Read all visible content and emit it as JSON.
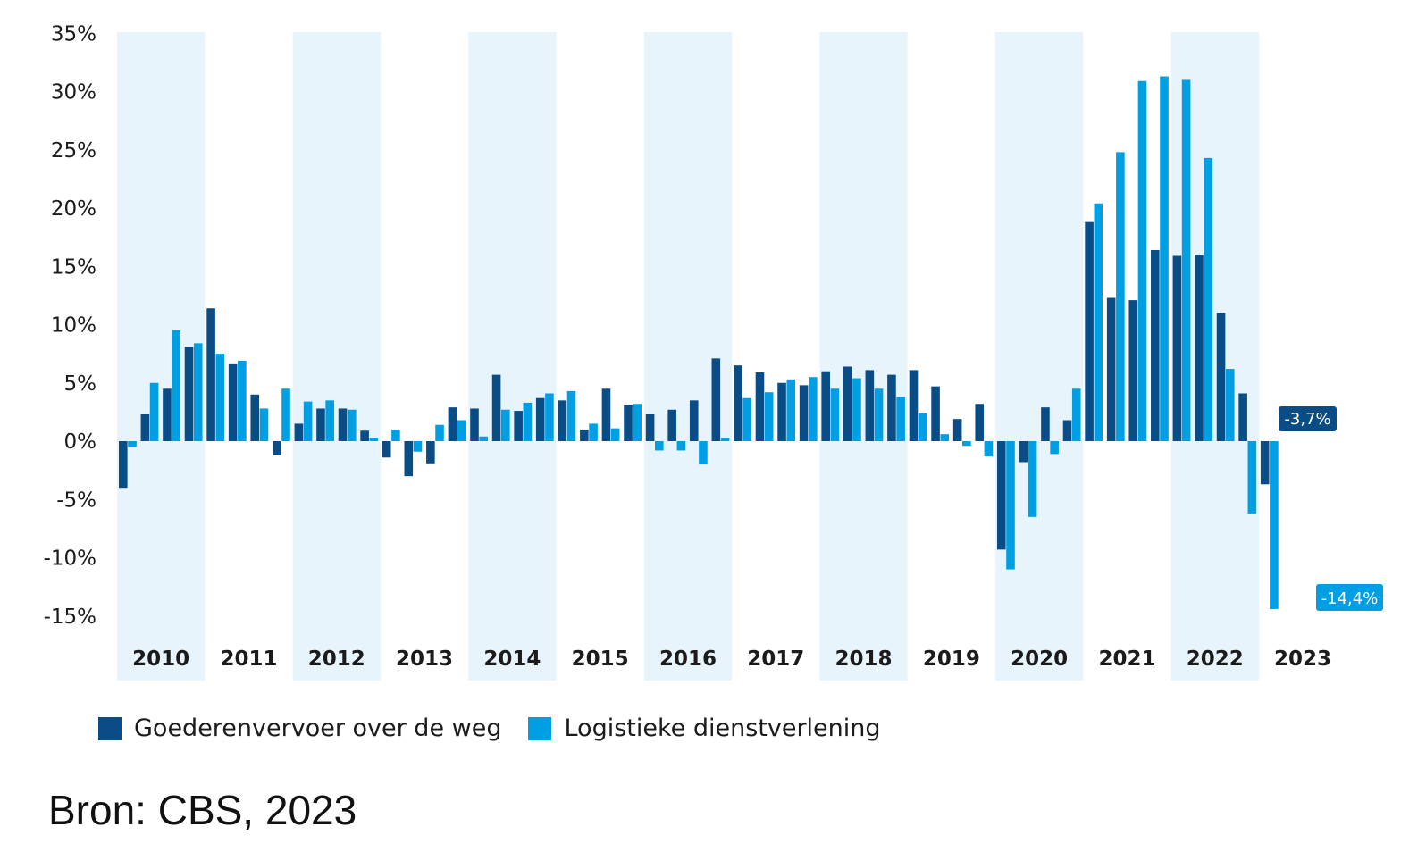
{
  "chart_data": {
    "type": "bar",
    "ylim": [
      -15,
      35
    ],
    "y_ticks": [
      "35%",
      "30%",
      "25%",
      "20%",
      "15%",
      "10%",
      "5%",
      "0%",
      "-5%",
      "-10%",
      "-15%"
    ],
    "y_tick_values": [
      35,
      30,
      25,
      20,
      15,
      10,
      5,
      0,
      -5,
      -10,
      -15
    ],
    "years": [
      "2010",
      "2011",
      "2012",
      "2013",
      "2014",
      "2015",
      "2016",
      "2017",
      "2018",
      "2019",
      "2020",
      "2021",
      "2022",
      "2023"
    ],
    "shaded_years": [
      "2010",
      "2012",
      "2014",
      "2016",
      "2018",
      "2020",
      "2022"
    ],
    "categories": [
      "2010 K1",
      "2010 K2",
      "2010 K3",
      "2010 K4",
      "2011 K1",
      "2011 K2",
      "2011 K3",
      "2011 K4",
      "2012 K1",
      "2012 K2",
      "2012 K3",
      "2012 K4",
      "2013 K1",
      "2013 K2",
      "2013 K3",
      "2013 K4",
      "2014 K1",
      "2014 K2",
      "2014 K3",
      "2014 K4",
      "2015 K1",
      "2015 K2",
      "2015 K3",
      "2015 K4",
      "2016 K1",
      "2016 K2",
      "2016 K3",
      "2016 K4",
      "2017 K1",
      "2017 K2",
      "2017 K3",
      "2017 K4",
      "2018 K1",
      "2018 K2",
      "2018 K3",
      "2018 K4",
      "2019 K1",
      "2019 K2",
      "2019 K3",
      "2019 K4",
      "2020 K1",
      "2020 K2",
      "2020 K3",
      "2020 K4",
      "2021 K1",
      "2021 K2",
      "2021 K3",
      "2021 K4",
      "2022 K1",
      "2022 K2",
      "2022 K3",
      "2022 K4",
      "2023 K1",
      "2023 K2"
    ],
    "series": [
      {
        "name": "Goederenvervoer over de weg",
        "color": "#0a4d86",
        "values": [
          -4.0,
          2.3,
          4.5,
          8.1,
          11.4,
          6.6,
          4.0,
          -1.2,
          1.5,
          2.8,
          2.8,
          0.9,
          -1.4,
          -3.0,
          -1.9,
          2.9,
          2.8,
          5.7,
          2.6,
          3.7,
          3.5,
          1.0,
          4.5,
          3.1,
          2.3,
          2.7,
          3.5,
          7.1,
          6.5,
          5.9,
          5.0,
          4.8,
          6.0,
          6.4,
          6.1,
          5.7,
          6.1,
          4.7,
          1.9,
          3.2,
          -9.3,
          -1.8,
          2.9,
          1.8,
          18.8,
          12.3,
          12.1,
          16.4,
          15.9,
          16.0,
          11.0,
          4.1,
          -3.7,
          null
        ],
        "last_label": "-3,7%"
      },
      {
        "name": "Logistieke dienstverlening",
        "color": "#009ee2",
        "values": [
          -0.5,
          5.0,
          9.5,
          8.4,
          7.5,
          6.9,
          2.8,
          4.5,
          3.4,
          3.5,
          2.7,
          0.3,
          1.0,
          -0.9,
          1.4,
          1.8,
          0.4,
          2.7,
          3.3,
          4.1,
          4.3,
          1.5,
          1.1,
          3.2,
          -0.8,
          -0.8,
          -2.0,
          0.3,
          3.7,
          4.2,
          5.3,
          5.5,
          4.5,
          5.4,
          4.5,
          3.8,
          2.4,
          0.6,
          -0.4,
          -1.3,
          -11.0,
          -6.5,
          -1.1,
          4.5,
          20.4,
          24.8,
          30.9,
          31.3,
          31.0,
          24.3,
          6.2,
          -6.2,
          -14.4,
          null
        ],
        "last_label": "-14,4%"
      }
    ]
  },
  "legend": {
    "item_1": "Goederenvervoer over de weg",
    "item_2": "Logistieke dienstverlening"
  },
  "source": "Bron: CBS, 2023",
  "colors": {
    "dark_blue": "#0a4d86",
    "light_blue": "#009ee2",
    "band": "#e7f4fc"
  }
}
